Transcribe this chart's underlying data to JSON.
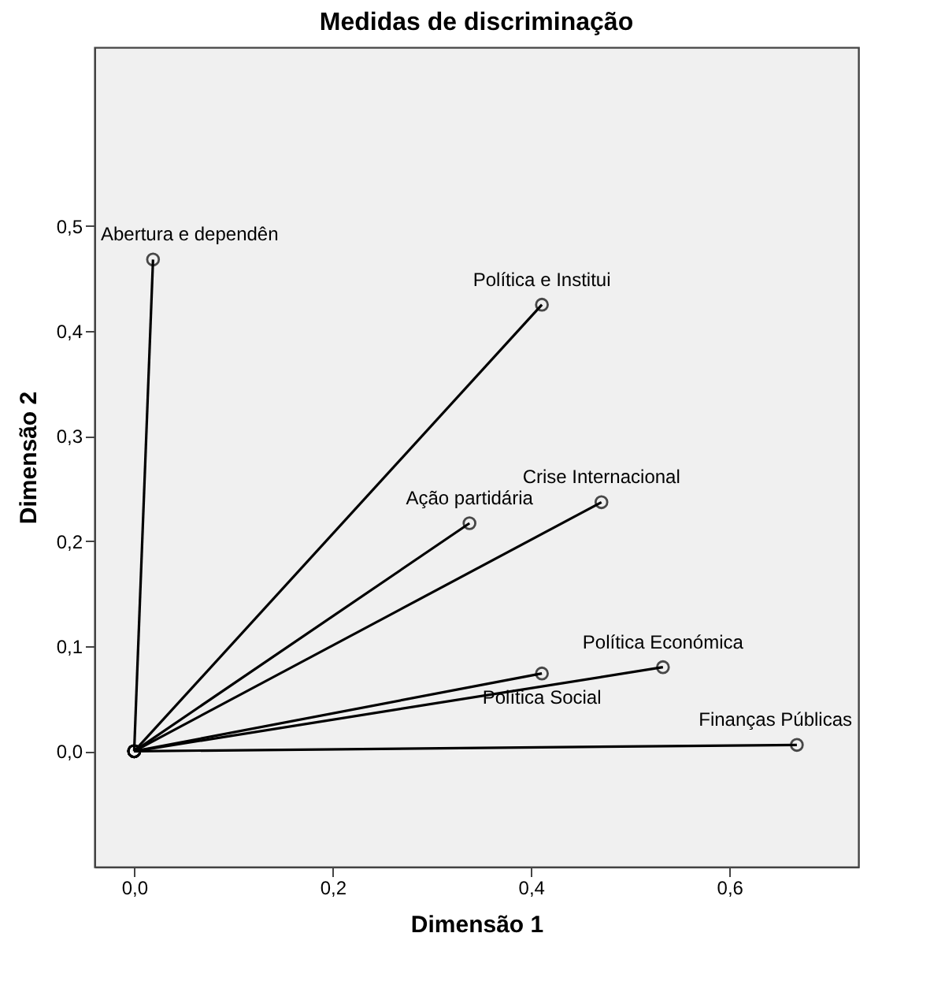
{
  "chart_data": {
    "type": "line",
    "title": "Medidas de discriminação",
    "xlabel": "Dimensão 1",
    "ylabel": "Dimensão 2",
    "xlim": [
      -0.04,
      0.73
    ],
    "ylim": [
      -0.11,
      0.67
    ],
    "xticks": [
      {
        "value": 0,
        "label": "0,0"
      },
      {
        "value": 0.2,
        "label": "0,2"
      },
      {
        "value": 0.4,
        "label": "0,4"
      },
      {
        "value": 0.6,
        "label": "0,6"
      }
    ],
    "yticks": [
      {
        "value": 0,
        "label": "0,0"
      },
      {
        "value": 0.1,
        "label": "0,1"
      },
      {
        "value": 0.2,
        "label": "0,2"
      },
      {
        "value": 0.3,
        "label": "0,3"
      },
      {
        "value": 0.4,
        "label": "0,4"
      },
      {
        "value": 0.5,
        "label": "0,5"
      }
    ],
    "grid": false,
    "legend": false,
    "marker": "circle",
    "line_style": "solid",
    "series": [
      {
        "name": "Abertura e dependên",
        "color": "#000000",
        "x": [
          0,
          0.019
        ],
        "values": [
          0,
          0.468
        ]
      },
      {
        "name": "Política e Institui",
        "color": "#000000",
        "x": [
          0,
          0.411
        ],
        "values": [
          0,
          0.425
        ]
      },
      {
        "name": "Ação partidária",
        "color": "#000000",
        "x": [
          0,
          0.338
        ],
        "values": [
          0,
          0.217
        ]
      },
      {
        "name": "Crise Internacional",
        "color": "#000000",
        "x": [
          0,
          0.471
        ],
        "values": [
          0,
          0.237
        ]
      },
      {
        "name": "Política Económica",
        "color": "#000000",
        "x": [
          0,
          0.533
        ],
        "values": [
          0,
          0.08
        ]
      },
      {
        "name": "Política Social",
        "color": "#000000",
        "x": [
          0,
          0.411
        ],
        "values": [
          0,
          0.074
        ]
      },
      {
        "name": "Finanças Públicas",
        "color": "#000000",
        "x": [
          0,
          0.668
        ],
        "values": [
          0,
          0.006
        ]
      }
    ]
  }
}
